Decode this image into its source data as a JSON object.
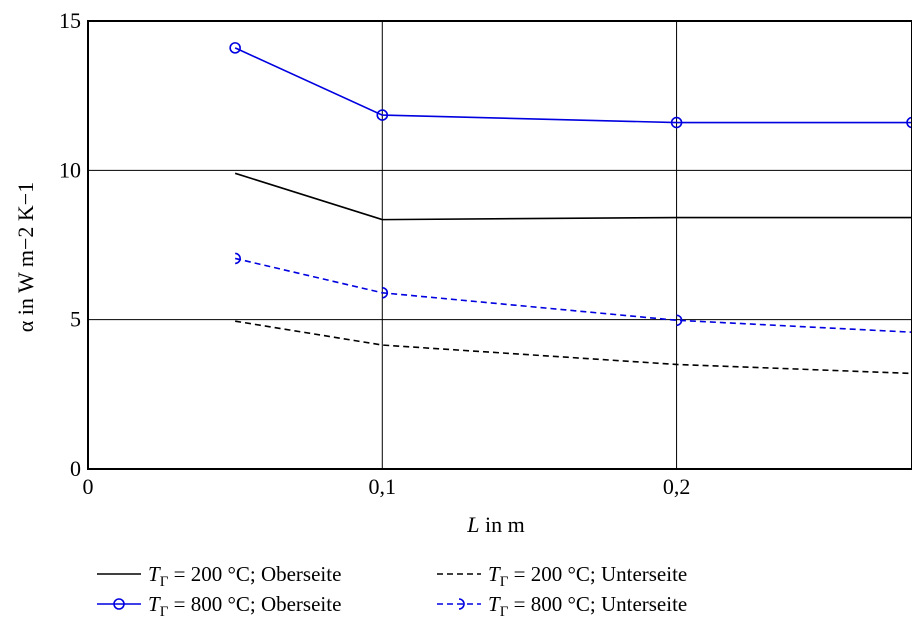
{
  "chart_data": {
    "type": "line",
    "xlabel_var": "L",
    "xlabel_unit": " in m",
    "ylabel": "α in W m−2 K−1",
    "xlim": [
      0,
      0.28
    ],
    "ylim": [
      0,
      15
    ],
    "grid": true,
    "legend_placement": "bottom",
    "x_ticks": [
      {
        "value": 0,
        "label": "0"
      },
      {
        "value": 0.1,
        "label": "0,1"
      },
      {
        "value": 0.2,
        "label": "0,2"
      }
    ],
    "y_ticks": [
      {
        "value": 0,
        "label": "0"
      },
      {
        "value": 5,
        "label": "5"
      },
      {
        "value": 10,
        "label": "10"
      },
      {
        "value": 15,
        "label": "15"
      }
    ],
    "series": [
      {
        "name_var": "T",
        "name_sub": "Γ",
        "name_rest": " = 200 °C; Oberseite",
        "color": "#000000",
        "dash": "solid",
        "marker": "none",
        "x": [
          0.05,
          0.1,
          0.2,
          0.28
        ],
        "y": [
          9.9,
          8.35,
          8.42,
          8.42
        ]
      },
      {
        "name_var": "T",
        "name_sub": "Γ",
        "name_rest": " = 200 °C; Unterseite",
        "color": "#000000",
        "dash": "dashed",
        "marker": "none",
        "x": [
          0.05,
          0.1,
          0.2,
          0.28
        ],
        "y": [
          4.95,
          4.15,
          3.5,
          3.2
        ]
      },
      {
        "name_var": "T",
        "name_sub": "Γ",
        "name_rest": " = 800 °C; Oberseite",
        "color": "#0000e0",
        "dash": "solid",
        "marker": "circle",
        "x": [
          0.05,
          0.1,
          0.2,
          0.28
        ],
        "y": [
          14.1,
          11.85,
          11.6,
          11.6
        ]
      },
      {
        "name_var": "T",
        "name_sub": "Γ",
        "name_rest": " = 800 °C; Unterseite",
        "color": "#0000e0",
        "dash": "dashed",
        "marker": "half-circle",
        "x": [
          0.05,
          0.1,
          0.2,
          0.28
        ],
        "y": [
          7.05,
          5.9,
          4.98,
          4.58
        ]
      }
    ]
  }
}
